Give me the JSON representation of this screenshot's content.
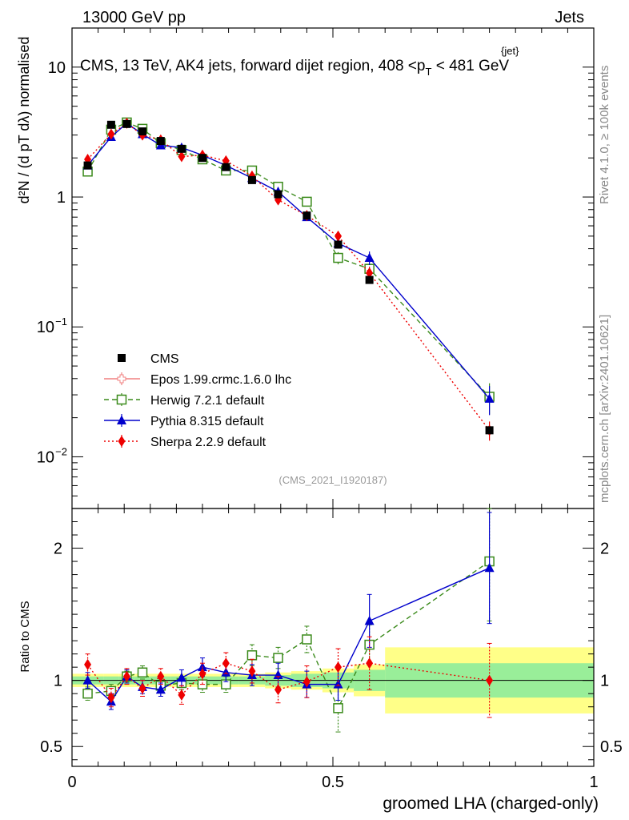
{
  "header": {
    "left": "13000 GeV pp",
    "right": "Jets",
    "title_prefix": "CMS, 13 TeV, AK4 jets, forward dijet region, 408 <",
    "title_var": "p",
    "title_sub": "T",
    "title_sup": "{jet}",
    "title_suffix": "< 481 GeV",
    "ylabel_main": "d²N / (d pT dλ) normalised",
    "ylabel_ratio": "Ratio to CMS",
    "xlabel": "groomed LHA (charged-only)",
    "analysis_id": "(CMS_2021_I1920187)",
    "side_rivet": "Rivet 4.1.0, ≥ 100k events",
    "side_mcplots": "mcplots.cern.ch [arXiv:2401.10621]"
  },
  "chart_data": {
    "type": "line",
    "xlim": [
      0,
      1
    ],
    "ylim_main": [
      0.004,
      20
    ],
    "ylim_ratio": [
      0.35,
      2.3
    ],
    "main_y_ticks": [
      {
        "v": 10,
        "label": "10"
      },
      {
        "v": 1,
        "label": "1"
      },
      {
        "v": 0.1,
        "label": "10",
        "exp": "−1"
      },
      {
        "v": 0.01,
        "label": "10",
        "exp": "−2"
      }
    ],
    "ratio_y_ticks": [
      {
        "v": 0.5,
        "label": "0.5"
      },
      {
        "v": 1,
        "label": "1"
      },
      {
        "v": 2,
        "label": "2"
      }
    ],
    "x_ticks": [
      {
        "v": 0,
        "label": "0"
      },
      {
        "v": 0.5,
        "label": "0.5"
      },
      {
        "v": 1,
        "label": "1"
      }
    ],
    "x": [
      0.03,
      0.075,
      0.105,
      0.135,
      0.17,
      0.21,
      0.25,
      0.295,
      0.345,
      0.395,
      0.45,
      0.51,
      0.57,
      0.8
    ],
    "bin_edges": [
      0.0,
      0.06,
      0.09,
      0.12,
      0.15,
      0.19,
      0.23,
      0.27,
      0.32,
      0.37,
      0.42,
      0.48,
      0.54,
      0.6,
      1.0
    ],
    "data": {
      "name": "CMS",
      "color": "#000000",
      "values": [
        1.75,
        3.6,
        3.65,
        3.2,
        2.7,
        2.35,
        2.0,
        1.7,
        1.35,
        1.05,
        0.72,
        0.43,
        0.23,
        0.016
      ],
      "band_inner": [
        0.03,
        0.03,
        0.03,
        0.03,
        0.03,
        0.03,
        0.03,
        0.03,
        0.03,
        0.04,
        0.05,
        0.06,
        0.08,
        0.13
      ],
      "band_outer": [
        0.05,
        0.05,
        0.05,
        0.05,
        0.05,
        0.05,
        0.05,
        0.05,
        0.05,
        0.06,
        0.07,
        0.09,
        0.12,
        0.25
      ]
    },
    "band_colors": {
      "inner": "#99ee99",
      "outer": "#ffff88"
    },
    "series": [
      {
        "name": "Epos 1.99.crmc.1.6.0 lhc",
        "color": "#f08080",
        "marker": "open-cross",
        "dash": "",
        "values": null,
        "ratio": null
      },
      {
        "name": "Herwig 7.2.1 default",
        "color": "#3a8a1a",
        "marker": "open-square",
        "dash": "6,4",
        "values": [
          1.57,
          3.3,
          3.75,
          3.35,
          2.6,
          2.3,
          1.95,
          1.6,
          1.6,
          1.2,
          0.92,
          0.34,
          0.28,
          0.029
        ],
        "ratio": [
          0.9,
          0.92,
          1.03,
          1.06,
          0.96,
          0.98,
          0.97,
          0.97,
          1.19,
          1.17,
          1.31,
          0.79,
          1.27,
          1.9
        ],
        "ratio_err": [
          0.05,
          0.05,
          0.04,
          0.05,
          0.05,
          0.05,
          0.06,
          0.06,
          0.08,
          0.08,
          0.1,
          0.18,
          0.15,
          0.45
        ]
      },
      {
        "name": "Pythia 8.315 default",
        "color": "#0000cc",
        "marker": "filled-triangle",
        "dash": "",
        "values": [
          1.75,
          2.9,
          3.7,
          3.05,
          2.5,
          2.4,
          2.1,
          1.75,
          1.4,
          1.1,
          0.7,
          0.44,
          0.34,
          0.028
        ],
        "ratio": [
          1.0,
          0.84,
          1.03,
          0.95,
          0.93,
          1.02,
          1.1,
          1.06,
          1.04,
          1.04,
          0.97,
          0.97,
          1.45,
          1.85
        ],
        "ratio_err": [
          0.06,
          0.06,
          0.05,
          0.05,
          0.05,
          0.06,
          0.07,
          0.07,
          0.08,
          0.09,
          0.1,
          0.12,
          0.2,
          0.42
        ]
      },
      {
        "name": "Sherpa 2.2.9 default",
        "color": "#ee0000",
        "marker": "filled-diamond",
        "dash": "2,3",
        "values": [
          1.95,
          3.05,
          3.7,
          3.0,
          2.75,
          2.05,
          2.1,
          1.9,
          1.45,
          0.95,
          0.72,
          0.5,
          0.26,
          0.016
        ],
        "ratio": [
          1.12,
          0.87,
          1.03,
          0.94,
          1.03,
          0.89,
          1.05,
          1.13,
          1.07,
          0.93,
          0.99,
          1.1,
          1.13,
          1.0
        ],
        "ratio_err": [
          0.08,
          0.07,
          0.06,
          0.06,
          0.06,
          0.07,
          0.08,
          0.08,
          0.09,
          0.1,
          0.12,
          0.14,
          0.2,
          0.28
        ]
      }
    ]
  }
}
